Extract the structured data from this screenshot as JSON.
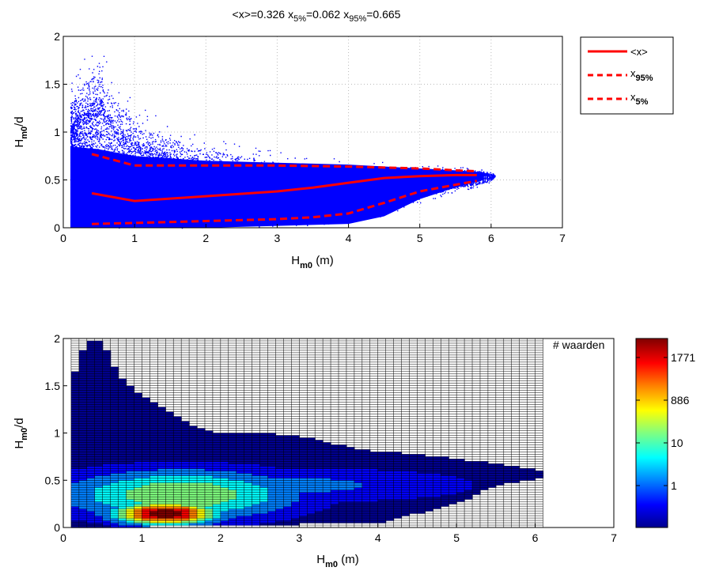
{
  "title": {
    "mean": "<x>=0.326",
    "x5_base": "x",
    "x5_sub": "5%",
    "x5_val": "=0.062",
    "x95_base": "x",
    "x95_sub": "95%",
    "x95_val": "=0.665"
  },
  "colors": {
    "scatter": "#0000ff",
    "lines": "#ff0000",
    "grid_top": "#bbbbbb",
    "grid_bottom": "#000000"
  },
  "chart_data": [
    {
      "type": "scatter",
      "xlabel": {
        "base": "H",
        "sub": "m0",
        "suffix": " (m)"
      },
      "ylabel": {
        "base": "H",
        "sub": "m0",
        "suffix": "/d"
      },
      "xlim": [
        0,
        7
      ],
      "ylim": [
        0,
        2
      ],
      "xticks": [
        "0",
        "1",
        "2",
        "3",
        "4",
        "5",
        "6",
        "7"
      ],
      "yticks": [
        "0",
        "0.5",
        "1",
        "1.5",
        "2"
      ],
      "grid": true,
      "legend_position": "outside-right",
      "legend": [
        {
          "label_base": "<x>",
          "label_sub": "",
          "style": "solid"
        },
        {
          "label_base": "x",
          "label_sub": "95%",
          "style": "dashed"
        },
        {
          "label_base": "x",
          "label_sub": "5%",
          "style": "dashed"
        }
      ],
      "lines": [
        {
          "name": "<x>",
          "style": "solid",
          "x": [
            0.4,
            1,
            2,
            3,
            3.5,
            4,
            4.5,
            5,
            5.5,
            5.8
          ],
          "y": [
            0.36,
            0.28,
            0.33,
            0.38,
            0.42,
            0.47,
            0.52,
            0.54,
            0.55,
            0.55
          ]
        },
        {
          "name": "x95%",
          "style": "dashed",
          "x": [
            0.4,
            1,
            2,
            3,
            4,
            5,
            5.5,
            5.8
          ],
          "y": [
            0.77,
            0.65,
            0.65,
            0.65,
            0.64,
            0.62,
            0.6,
            0.59
          ]
        },
        {
          "name": "x5%",
          "style": "dashed",
          "x": [
            0.4,
            1,
            2,
            3,
            3.5,
            4,
            4.5,
            5,
            5.5,
            5.8
          ],
          "y": [
            0.04,
            0.05,
            0.07,
            0.09,
            0.11,
            0.15,
            0.26,
            0.38,
            0.45,
            0.49
          ]
        }
      ],
      "scatter_envelope": {
        "x": [
          0.1,
          0.3,
          0.5,
          0.7,
          1.0,
          1.5,
          2.0,
          2.5,
          3.0,
          3.5,
          4.0,
          4.5,
          5.0,
          5.5,
          5.8,
          6.0,
          6.05
        ],
        "upper": [
          1.5,
          1.8,
          1.95,
          1.6,
          1.3,
          1.1,
          0.98,
          0.88,
          0.8,
          0.75,
          0.72,
          0.7,
          0.68,
          0.66,
          0.63,
          0.6,
          0.56
        ],
        "lower": [
          0.0,
          0.0,
          0.0,
          0.0,
          0.0,
          0.0,
          0.0,
          0.01,
          0.02,
          0.03,
          0.05,
          0.12,
          0.25,
          0.38,
          0.42,
          0.48,
          0.53
        ]
      }
    },
    {
      "type": "heatmap",
      "xlabel": {
        "base": "H",
        "sub": "m0",
        "suffix": " (m)"
      },
      "ylabel": {
        "base": "H",
        "sub": "m0",
        "suffix": "/d"
      },
      "xlim": [
        0,
        7
      ],
      "ylim": [
        0,
        2
      ],
      "xticks": [
        "0",
        "1",
        "2",
        "3",
        "4",
        "5",
        "6",
        "7"
      ],
      "yticks": [
        "0",
        "0.5",
        "1",
        "1.5",
        "2"
      ],
      "x_bins": [
        0.1,
        6.1
      ],
      "bin_width": 0.1,
      "bin_height": 0.025,
      "colorbar_label": "# waarden",
      "colorbar_ticks": [
        "1771",
        "886",
        "10",
        "1"
      ],
      "colorbar_colors": [
        "#00008f",
        "#0000ff",
        "#0080ff",
        "#00ffff",
        "#80ff80",
        "#ffff00",
        "#ff8000",
        "#ff0000",
        "#800000"
      ],
      "column_top": {
        "x": [
          0.1,
          0.3,
          0.5,
          0.7,
          0.9,
          1.1,
          1.3,
          1.5,
          1.7,
          2.0,
          2.5,
          3.0,
          3.5,
          4.0,
          4.5,
          5.0,
          5.5,
          5.8,
          6.1
        ],
        "ymax": [
          1.55,
          1.97,
          1.97,
          1.6,
          1.45,
          1.35,
          1.25,
          1.15,
          1.05,
          1.0,
          1.0,
          0.97,
          0.87,
          0.8,
          0.78,
          0.72,
          0.68,
          0.63,
          0.6
        ]
      },
      "column_bottom": {
        "x": [
          0.1,
          4.0,
          4.5,
          5.0,
          5.5,
          6.1
        ],
        "ymin": [
          0.0,
          0.05,
          0.15,
          0.25,
          0.45,
          0.52
        ]
      }
    }
  ]
}
